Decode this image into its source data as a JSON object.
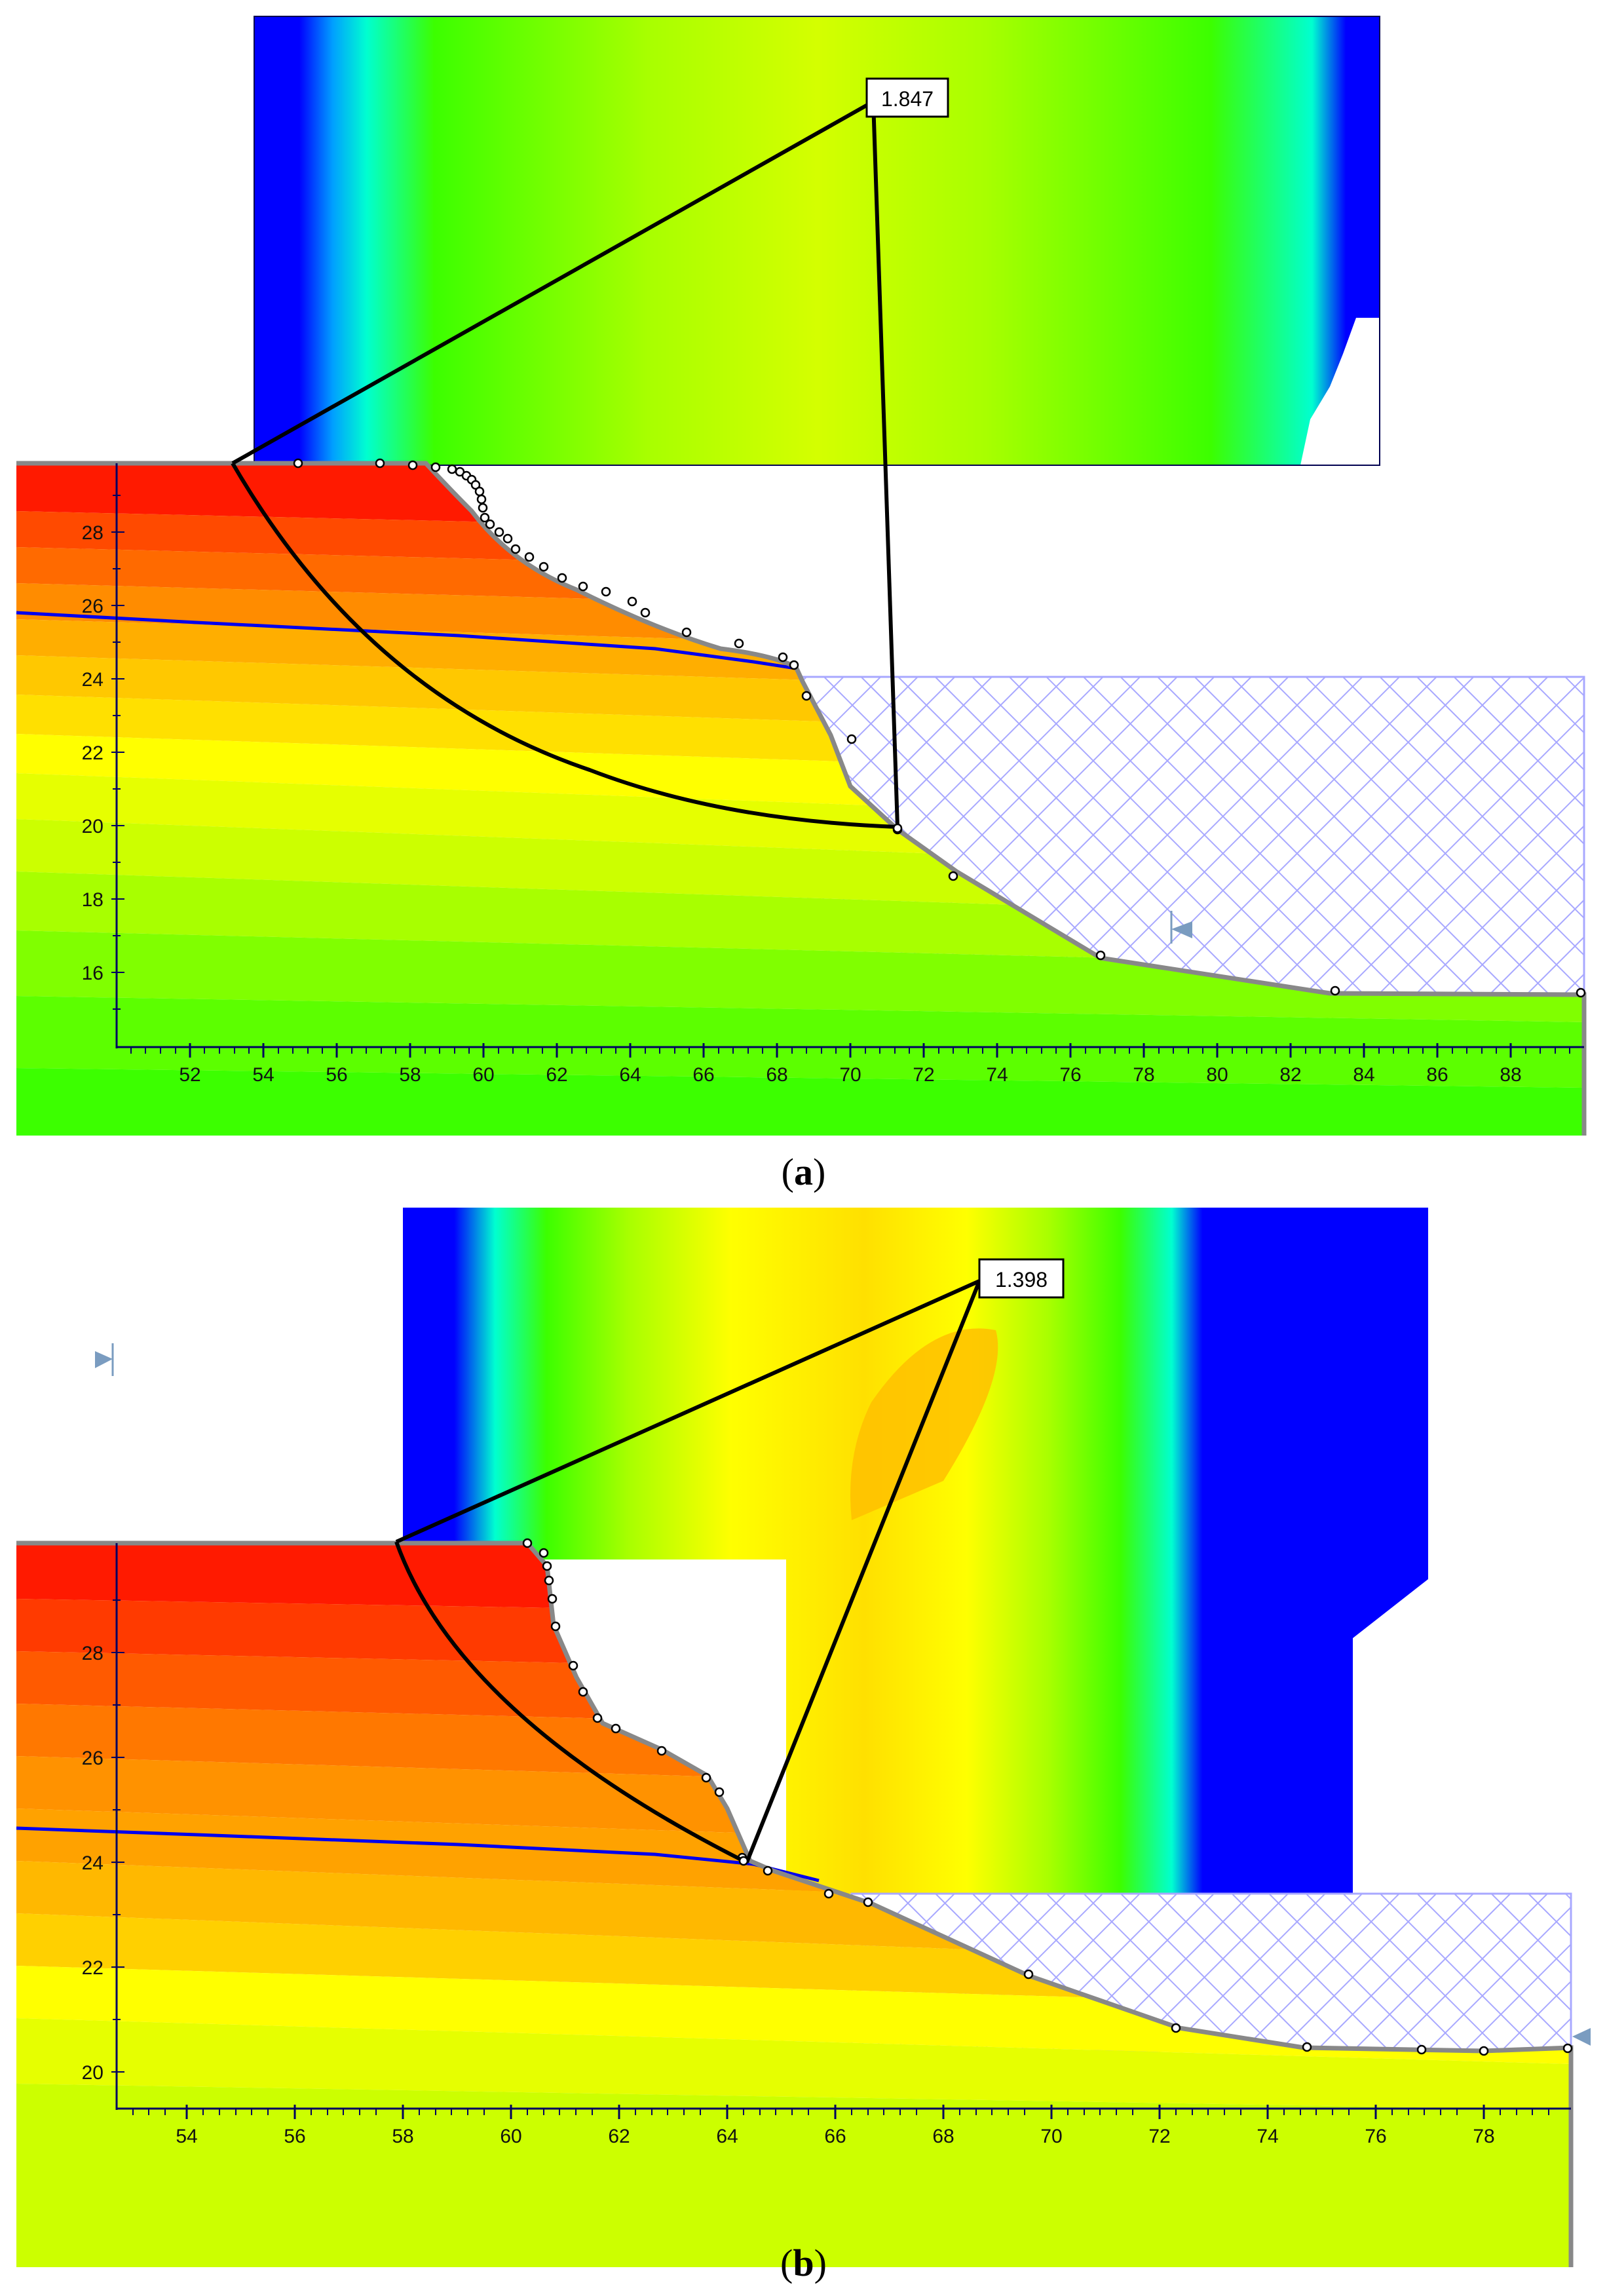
{
  "panels": [
    {
      "id": "a",
      "caption_letter": "a",
      "factor_of_safety": "1.847",
      "x_ticks": [
        "52",
        "54",
        "56",
        "58",
        "60",
        "62",
        "64",
        "66",
        "68",
        "70",
        "72",
        "74",
        "76",
        "78",
        "80",
        "82",
        "84",
        "86",
        "88"
      ],
      "y_ticks": [
        "16",
        "18",
        "20",
        "22",
        "24",
        "26",
        "28"
      ]
    },
    {
      "id": "b",
      "caption_letter": "b",
      "factor_of_safety": "1.398",
      "x_ticks": [
        "54",
        "56",
        "58",
        "60",
        "62",
        "64",
        "66",
        "68",
        "70",
        "72",
        "74",
        "76",
        "78"
      ],
      "y_ticks": [
        "20",
        "22",
        "24",
        "26",
        "28"
      ]
    }
  ],
  "colors": {
    "red": "#ff1a00",
    "orange_red": "#ff4a00",
    "orange": "#ff8c00",
    "light_orange": "#ffae00",
    "yellow_orange": "#ffd200",
    "yellow": "#ffff00",
    "yellow_green": "#d4ff00",
    "lime": "#a8ff00",
    "green": "#3cff00",
    "cyan": "#00ffd0",
    "blue": "#0000ff",
    "water_table": "#0000ee",
    "slope_surface": "#888888",
    "hatch": "#a8a8ff"
  }
}
